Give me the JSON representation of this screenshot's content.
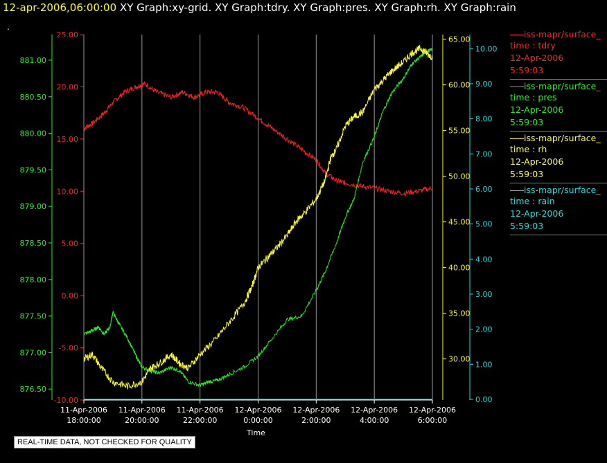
{
  "header": {
    "timestamp": "12-apr-2006,06:00:00",
    "graphs": "  XY Graph:xy-grid.  XY Graph:tdry.  XY Graph:pres.  XY Graph:rh.  XY Graph:rain",
    "dot": "."
  },
  "footer": {
    "quality_notice": "REAL-TIME DATA, NOT CHECKED FOR QUALITY"
  },
  "legend": [
    {
      "name": "iss-mapr/surface_",
      "var": "time : tdry",
      "date": "12-Apr-2006",
      "time": "5:59:03",
      "color": "#ff2020"
    },
    {
      "name": "iss-mapr/surface_",
      "var": "time : pres",
      "date": "12-Apr-2006",
      "time": "5:59:03",
      "color": "#22ee22"
    },
    {
      "name": "iss-mapr/surface_",
      "var": "time : rh",
      "date": "12-Apr-2006",
      "time": "5:59:03",
      "color": "#ffff22"
    },
    {
      "name": "iss-mapr/surface_",
      "var": "time : rain",
      "date": "12-Apr-2006",
      "time": "5:59:03",
      "color": "#22dddd"
    }
  ],
  "chart_data": {
    "type": "line",
    "xlabel": "Time",
    "xlim": [
      0,
      12
    ],
    "xticks": [
      {
        "x": 0,
        "line1": "11-Apr-2006",
        "line2": "18:00:00"
      },
      {
        "x": 2,
        "line1": "11-Apr-2006",
        "line2": "20:00:00"
      },
      {
        "x": 4,
        "line1": "11-Apr-2006",
        "line2": "22:00:00"
      },
      {
        "x": 6,
        "line1": "12-Apr-2006",
        "line2": "0:00:00"
      },
      {
        "x": 8,
        "line1": "12-Apr-2006",
        "line2": "2:00:00"
      },
      {
        "x": 10,
        "line1": "12-Apr-2006",
        "line2": "4:00:00"
      },
      {
        "x": 12,
        "line1": "12-Apr-2006",
        "line2": "6:00:00"
      }
    ],
    "grid": "vertical",
    "axes": [
      {
        "id": "pres",
        "side": "left",
        "offset": 0,
        "color": "#22ee22",
        "ylim": [
          876.35,
          881.35
        ],
        "ticks": [
          "876.50",
          "877.00",
          "877.50",
          "878.00",
          "878.50",
          "879.00",
          "879.50",
          "880.00",
          "880.50",
          "881.00"
        ]
      },
      {
        "id": "tdry",
        "side": "left",
        "offset": 1,
        "color": "#ff2020",
        "ylim": [
          -10,
          25
        ],
        "ticks": [
          "-10.00",
          "-5.00",
          "0.00",
          "5.00",
          "10.00",
          "15.00",
          "20.00",
          "25.00"
        ]
      },
      {
        "id": "rh",
        "side": "right",
        "offset": 0,
        "color": "#ffff22",
        "ylim": [
          25.5,
          65.5
        ],
        "ticks": [
          "30.00",
          "35.00",
          "40.00",
          "45.00",
          "50.00",
          "55.00",
          "60.00",
          "65.00"
        ]
      },
      {
        "id": "rain",
        "side": "right",
        "offset": 1,
        "color": "#22dddd",
        "ylim": [
          -0.02,
          10.4
        ],
        "ticks": [
          "0.00",
          "1.00",
          "2.00",
          "3.00",
          "4.00",
          "5.00",
          "6.00",
          "7.00",
          "8.00",
          "9.00",
          "10.00"
        ]
      }
    ],
    "series": [
      {
        "axis": "tdry",
        "color": "#ff2020",
        "jitter": 0.25,
        "x": [
          0,
          0.3,
          0.7,
          1.0,
          1.4,
          1.8,
          2.1,
          2.5,
          3.0,
          3.4,
          3.8,
          4.2,
          4.6,
          5.0,
          5.5,
          6.0,
          6.5,
          7.0,
          7.5,
          8.0,
          8.3,
          8.7,
          9.0,
          9.5,
          10.0,
          10.5,
          11.0,
          11.5,
          12.0
        ],
        "y": [
          16.0,
          16.5,
          17.5,
          18.5,
          19.5,
          20.0,
          20.3,
          19.5,
          19.0,
          19.5,
          19.0,
          19.5,
          19.5,
          18.5,
          18.0,
          17.0,
          16.0,
          15.0,
          14.0,
          13.0,
          11.8,
          11.0,
          10.8,
          10.5,
          10.3,
          10.0,
          9.8,
          10.0,
          10.3
        ]
      },
      {
        "axis": "pres",
        "color": "#22ee22",
        "jitter": 0.025,
        "x": [
          0,
          0.3,
          0.5,
          0.7,
          0.9,
          1.0,
          1.2,
          1.5,
          1.8,
          2.0,
          2.3,
          2.6,
          3.0,
          3.3,
          3.6,
          4.0,
          4.3,
          4.6,
          5.0,
          5.5,
          6.0,
          6.5,
          7.0,
          7.5,
          8.0,
          8.3,
          8.7,
          9.0,
          9.3,
          9.6,
          10.0,
          10.3,
          10.6,
          11.0,
          11.3,
          11.6,
          11.8,
          12.0
        ],
        "y": [
          877.25,
          877.3,
          877.35,
          877.25,
          877.35,
          877.55,
          877.4,
          877.2,
          876.95,
          876.8,
          876.75,
          876.72,
          876.8,
          876.75,
          876.6,
          876.55,
          876.6,
          876.62,
          876.7,
          876.8,
          876.95,
          877.2,
          877.45,
          877.5,
          877.85,
          878.1,
          878.5,
          878.85,
          879.1,
          879.6,
          879.95,
          880.3,
          880.55,
          880.75,
          880.95,
          881.05,
          881.12,
          881.15
        ]
      },
      {
        "axis": "rh",
        "color": "#ffff22",
        "jitter": 0.4,
        "x": [
          0,
          0.3,
          0.6,
          1.0,
          1.5,
          2.0,
          2.3,
          2.6,
          3.0,
          3.3,
          3.6,
          4.0,
          4.5,
          5.0,
          5.5,
          5.8,
          6.0,
          6.3,
          6.6,
          7.0,
          7.3,
          7.6,
          8.0,
          8.3,
          8.5,
          8.7,
          9.0,
          9.3,
          9.6,
          10.0,
          10.3,
          10.6,
          11.0,
          11.3,
          11.6,
          11.8,
          12.0
        ],
        "y": [
          30.0,
          30.5,
          29.0,
          27.5,
          27.0,
          27.5,
          29.0,
          29.5,
          30.5,
          29.5,
          29.0,
          30.5,
          32.0,
          34.0,
          36.0,
          38.0,
          40.0,
          41.0,
          42.0,
          43.5,
          45.0,
          46.0,
          47.5,
          49.5,
          52.0,
          53.0,
          55.5,
          56.5,
          57.0,
          59.5,
          60.5,
          61.5,
          62.5,
          63.5,
          64.0,
          63.5,
          63.0
        ]
      },
      {
        "axis": "rain",
        "color": "#22dddd",
        "jitter": 0,
        "x": [
          0,
          12
        ],
        "y": [
          0,
          0
        ]
      }
    ]
  }
}
